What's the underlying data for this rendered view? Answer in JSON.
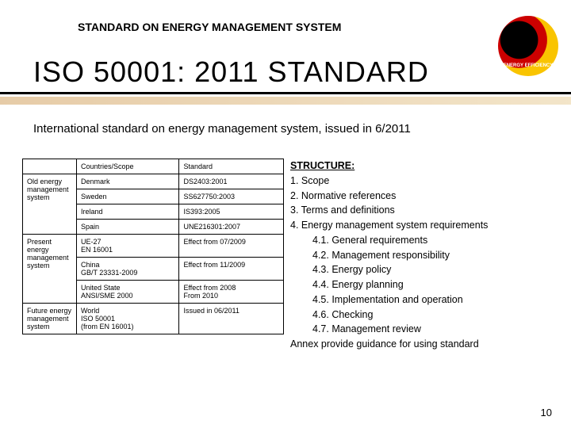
{
  "header_label": "STANDARD ON ENERGY MANAGEMENT SYSTEM",
  "logo_text": "ENERGY EFFICIENCY",
  "main_title": "ISO 50001: 2011 STANDARD",
  "subtitle": "International standard on energy management system, issued in 6/2011",
  "table": {
    "columns": [
      "",
      "Countries/Scope",
      "Standard"
    ],
    "rows": [
      [
        "Old energy management system",
        "Denmark",
        "DS2403:2001"
      ],
      [
        "",
        "Sweden",
        "SS627750:2003"
      ],
      [
        "",
        "Ireland",
        "IS393:2005"
      ],
      [
        "",
        "Spain",
        "UNE216301:2007"
      ],
      [
        "Present energy management system",
        "UE-27\nEN 16001",
        "Effect from 07/2009"
      ],
      [
        "",
        "China\nGB/T 23331-2009",
        "Effect from 11/2009"
      ],
      [
        "",
        "United State\nANSI/SME 2000",
        "Effect from 2008\nFrom 2010"
      ],
      [
        "Future energy management system",
        "World\nISO 50001\n(from EN 16001)",
        "Issued in 06/2011"
      ]
    ],
    "row_groups": [
      {
        "start": 0,
        "span": 4
      },
      {
        "start": 4,
        "span": 3
      },
      {
        "start": 7,
        "span": 1
      }
    ]
  },
  "structure": {
    "head": "STRUCTURE:",
    "items": [
      "1. Scope",
      "2. Normative references",
      "3. Terms and definitions",
      "4. Energy management system requirements"
    ],
    "subitems": [
      "4.1. General requirements",
      "4.2. Management responsibility",
      "4.3. Energy policy",
      "4.4. Energy planning",
      "4.5. Implementation and operation",
      "4.6. Checking",
      "4.7. Management review"
    ],
    "annex": "Annex provide guidance for using standard"
  },
  "page_number": "10"
}
